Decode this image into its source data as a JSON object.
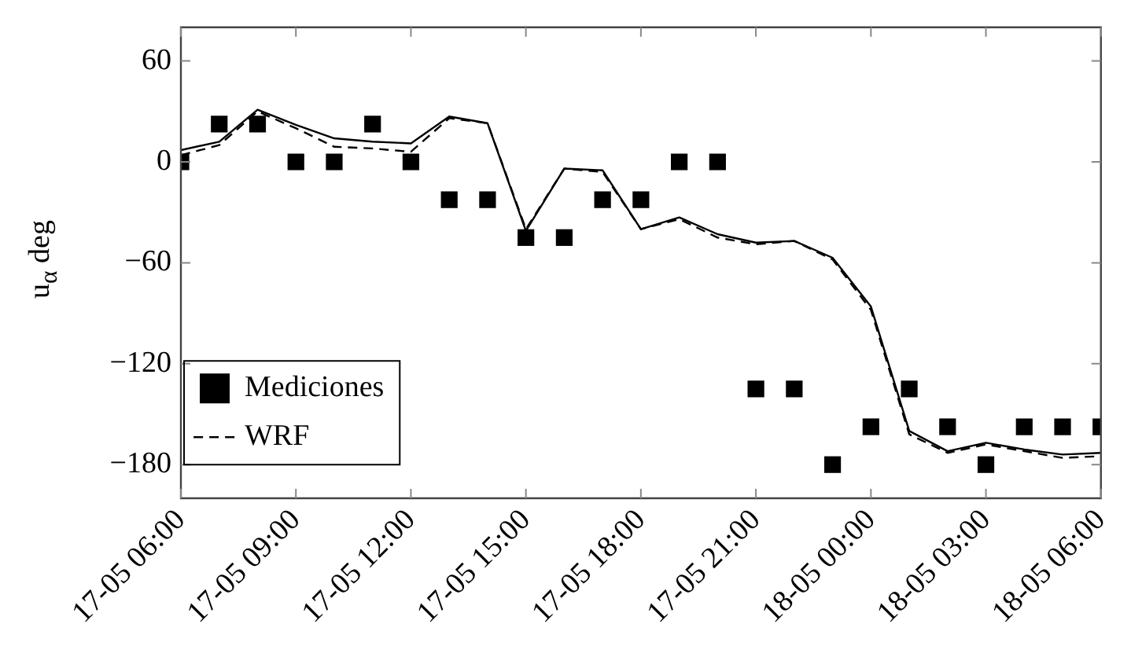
{
  "chart_data": {
    "type": "line",
    "ylabel": "u$_{α}$ deg",
    "xlim": [
      "--05-17T06:00",
      "--05-18T06:00"
    ],
    "xticks": [
      {
        "value": "--05-17T06:00",
        "label": "17-05 06:00"
      },
      {
        "value": "--05-17T09:00",
        "label": "17-05 09:00"
      },
      {
        "value": "--05-17T12:00",
        "label": "17-05 12:00"
      },
      {
        "value": "--05-17T15:00",
        "label": "17-05 15:00"
      },
      {
        "value": "--05-17T18:00",
        "label": "17-05 18:00"
      },
      {
        "value": "--05-17T21:00",
        "label": "17-05 21:00"
      },
      {
        "value": "--05-18T00:00",
        "label": "18-05 00:00"
      },
      {
        "value": "--05-18T03:00",
        "label": "18-05 03:00"
      },
      {
        "value": "--05-18T06:00",
        "label": "18-05 06:00"
      }
    ],
    "ylim": [
      -200,
      80
    ],
    "yticks": [
      {
        "value": -180,
        "label": "−180"
      },
      {
        "value": -120,
        "label": "−120"
      },
      {
        "value": -60,
        "label": "−60"
      },
      0,
      60
    ],
    "x": [
      "--05-17T06:00",
      "--05-17T07:00",
      "--05-17T08:00",
      "--05-17T09:00",
      "--05-17T10:00",
      "--05-17T11:00",
      "--05-17T12:00",
      "--05-17T13:00",
      "--05-17T14:00",
      "--05-17T15:00",
      "--05-17T16:00",
      "--05-17T17:00",
      "--05-17T18:00",
      "--05-17T19:00",
      "--05-17T20:00",
      "--05-17T21:00",
      "--05-17T22:00",
      "--05-17T23:00",
      "--05-18T00:00",
      "--05-18T01:00",
      "--05-18T02:00",
      "--05-18T03:00",
      "--05-18T04:00",
      "--05-18T05:00",
      "--05-18T06:00"
    ],
    "series": [
      {
        "name": "Mediciones",
        "type": "scatter",
        "marker": "square",
        "color": "#000000",
        "values": [
          0,
          22.5,
          22.5,
          0,
          0,
          22.5,
          0,
          -22.5,
          -22.5,
          -45,
          -45,
          -22.5,
          -22.5,
          0,
          0,
          -135,
          -135,
          -180,
          -157.5,
          -135,
          -157.5,
          -180,
          -157.5,
          -157.5,
          -157.5
        ]
      },
      {
        "name": "WRF",
        "line_style": "dashed",
        "color": "#000000",
        "values": [
          4,
          10,
          30,
          20,
          9,
          8,
          6,
          26,
          23,
          -40,
          -4,
          -6,
          -40,
          -34,
          -45,
          -49,
          -47,
          -58,
          -88,
          -162,
          -173,
          -168,
          -172,
          -176,
          -175
        ]
      },
      {
        "line_style": "solid",
        "color": "#000000",
        "values": [
          7,
          12,
          31,
          22,
          14,
          12,
          11,
          27,
          23,
          -41,
          -4,
          -5,
          -40,
          -33,
          -43,
          -48,
          -47,
          -57,
          -86,
          -160,
          -172,
          -167,
          -171,
          -174,
          -173
        ]
      }
    ],
    "legend": "bottom left",
    "grid": false
  }
}
